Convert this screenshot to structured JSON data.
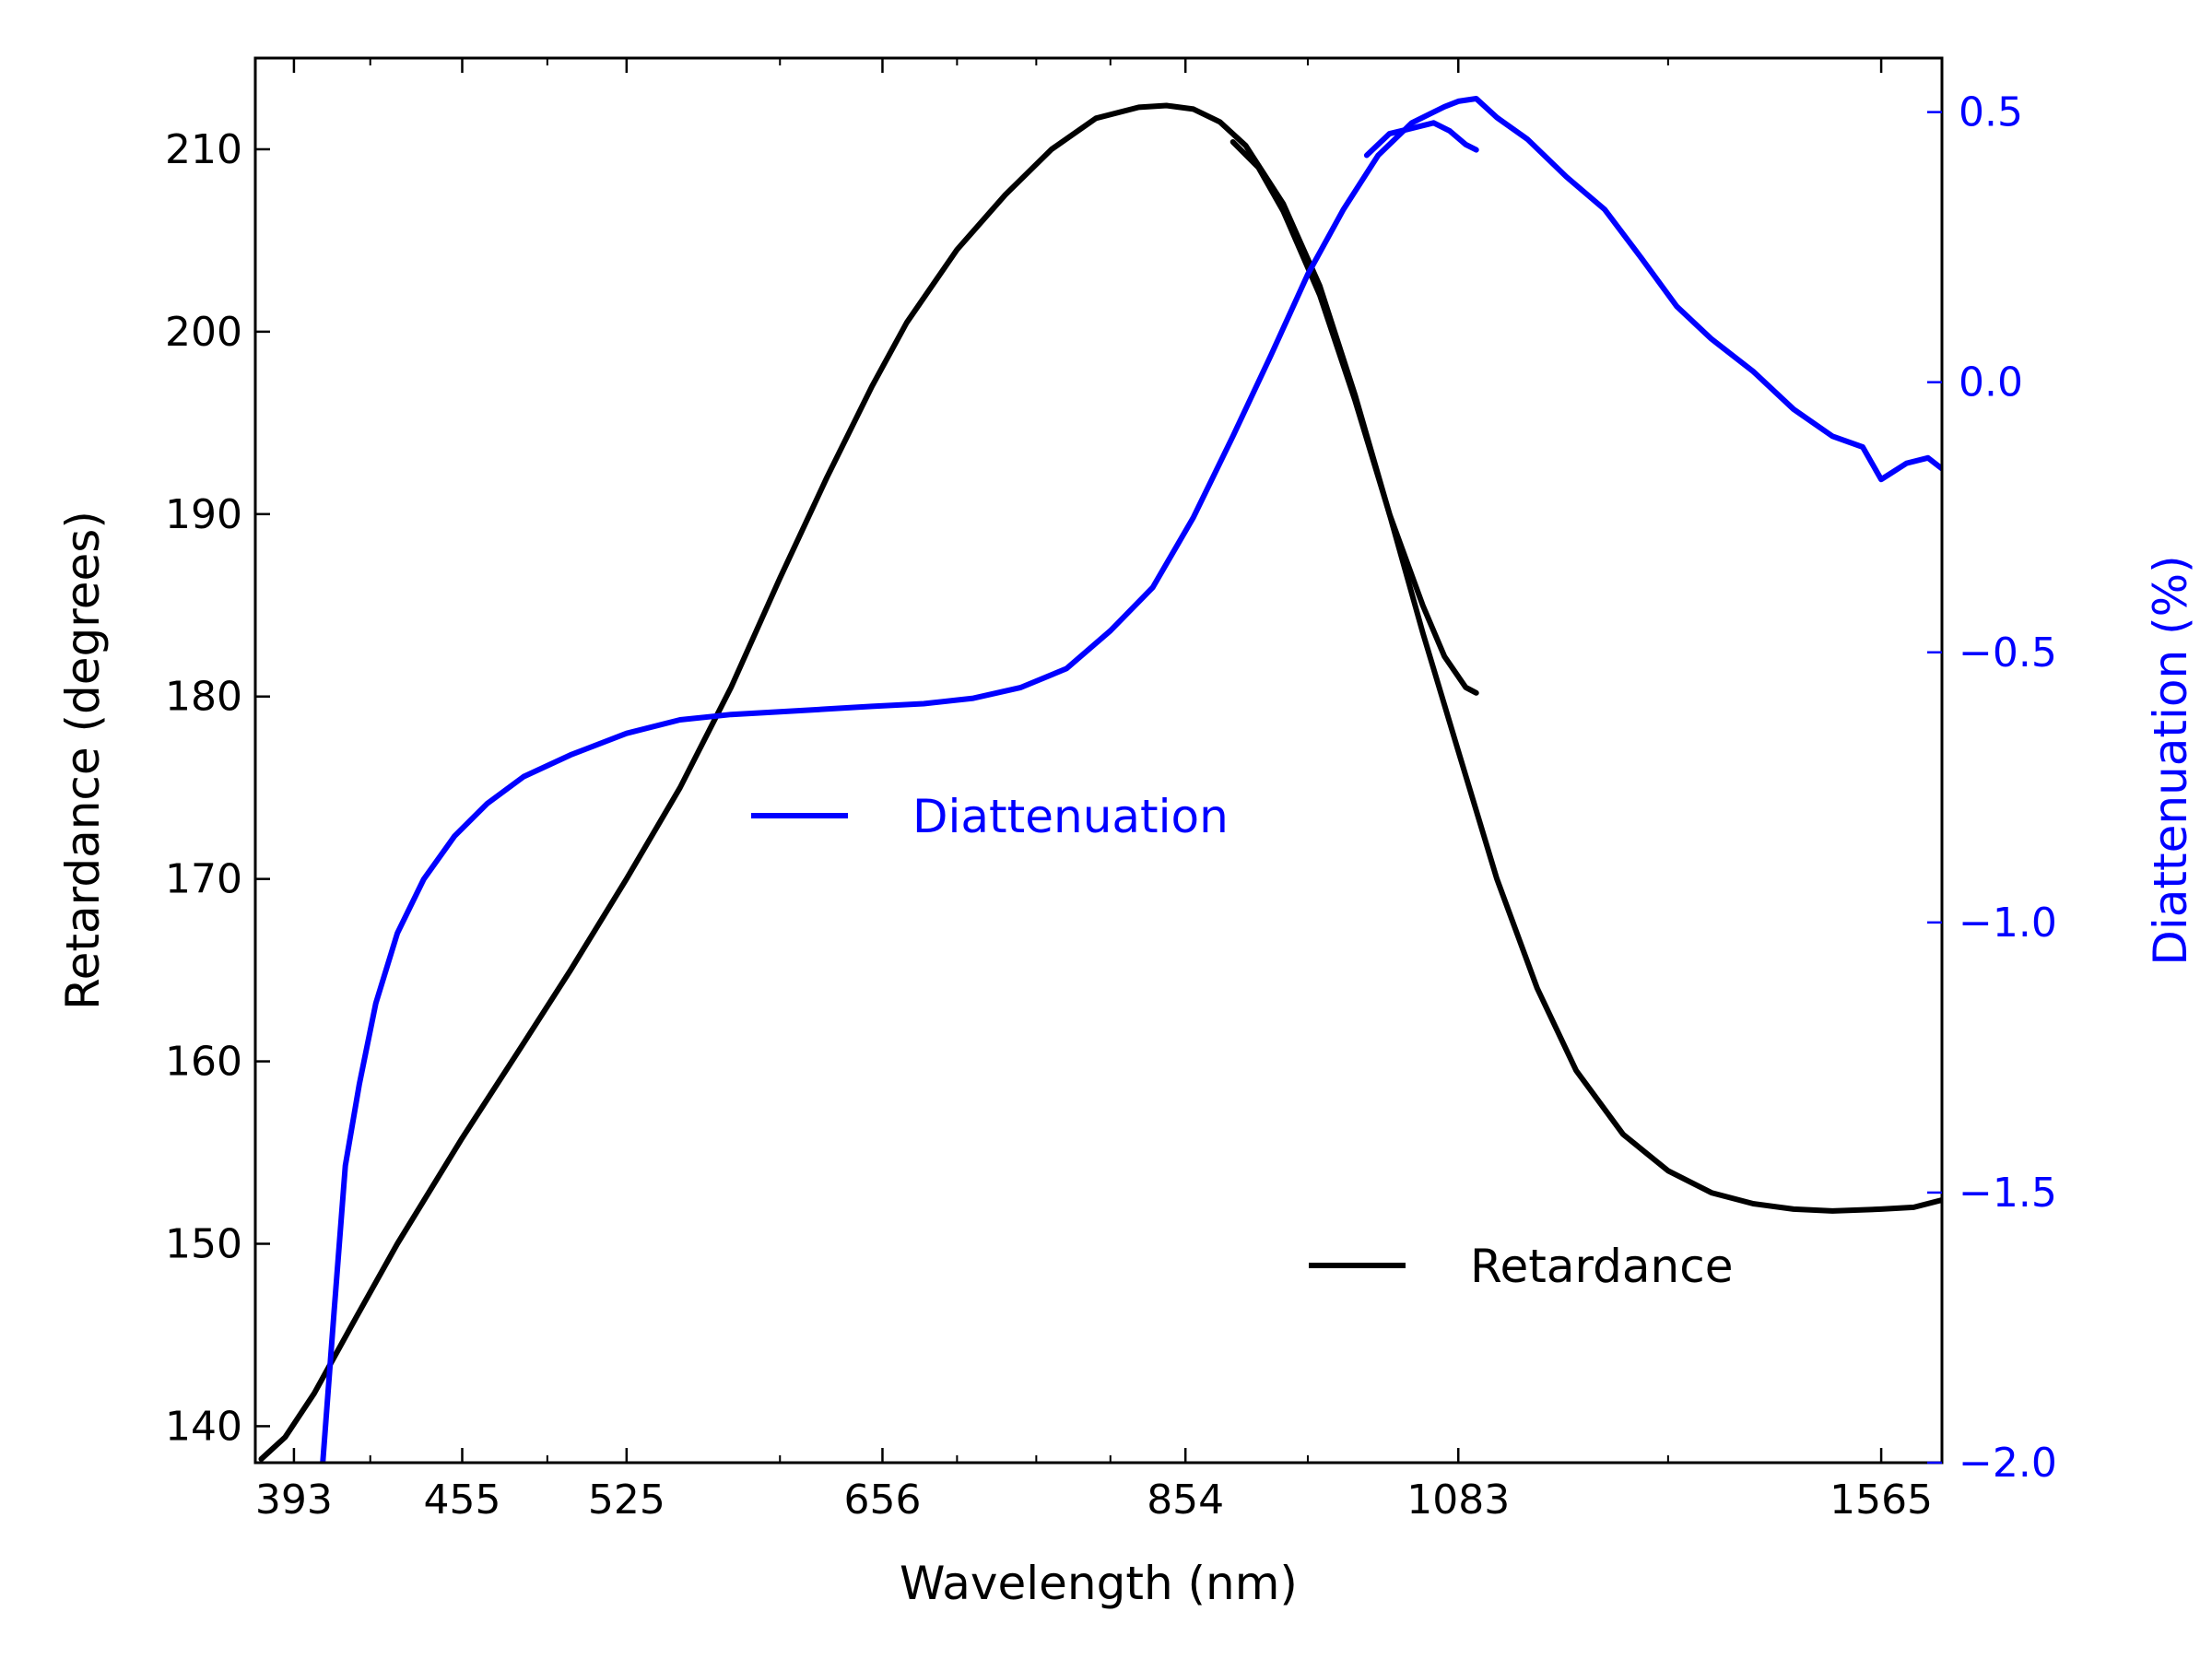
{
  "chart_data": {
    "type": "line",
    "x_axis": {
      "label": "Wavelength (nm)",
      "scale": "log",
      "range": [
        380,
        1650
      ],
      "major_ticks": [
        393,
        455,
        525,
        656,
        854,
        1083,
        1565
      ],
      "minor_ticks": [
        420,
        490,
        600,
        700,
        750,
        800,
        950,
        1300
      ]
    },
    "y_left": {
      "label": "Retardance (degrees)",
      "range": [
        138,
        215
      ],
      "ticks": [
        140,
        150,
        160,
        170,
        180,
        190,
        200,
        210
      ]
    },
    "y_right": {
      "label": "Diattenuation (%)",
      "range": [
        -2.0,
        0.6
      ],
      "ticks": [
        "0.5",
        "0.0",
        "−0.5",
        "−1.0",
        "−1.5",
        "−2.0"
      ],
      "tick_values": [
        0.5,
        0.0,
        -0.5,
        -1.0,
        -1.5,
        -2.0
      ]
    },
    "series": [
      {
        "name": "Retardance",
        "axis": "left",
        "color": "#000000",
        "points": [
          [
            382,
            138.2
          ],
          [
            390,
            139.4
          ],
          [
            400,
            141.8
          ],
          [
            415,
            146.0
          ],
          [
            430,
            150.0
          ],
          [
            455,
            155.8
          ],
          [
            480,
            161.0
          ],
          [
            500,
            165.0
          ],
          [
            525,
            170.0
          ],
          [
            550,
            175.0
          ],
          [
            575,
            180.5
          ],
          [
            600,
            186.5
          ],
          [
            625,
            192.0
          ],
          [
            650,
            197.0
          ],
          [
            670,
            200.5
          ],
          [
            700,
            204.5
          ],
          [
            730,
            207.5
          ],
          [
            760,
            210.0
          ],
          [
            790,
            211.7
          ],
          [
            820,
            212.3
          ],
          [
            840,
            212.4
          ],
          [
            860,
            212.2
          ],
          [
            880,
            211.5
          ],
          [
            900,
            210.2
          ],
          [
            930,
            207.0
          ],
          [
            960,
            202.5
          ],
          [
            990,
            196.5
          ],
          [
            1020,
            190.0
          ],
          [
            1050,
            183.5
          ],
          [
            1083,
            177.0
          ],
          [
            1120,
            170.0
          ],
          [
            1160,
            164.0
          ],
          [
            1200,
            159.5
          ],
          [
            1250,
            156.0
          ],
          [
            1300,
            154.0
          ],
          [
            1350,
            152.8
          ],
          [
            1400,
            152.2
          ],
          [
            1450,
            151.9
          ],
          [
            1500,
            151.8
          ],
          [
            1565,
            151.9
          ],
          [
            1610,
            152.0
          ],
          [
            1650,
            152.4
          ]
        ]
      },
      {
        "name": "Retardance",
        "axis": "left",
        "color": "#000000",
        "points": [
          [
            890,
            210.4
          ],
          [
            910,
            209.0
          ],
          [
            930,
            206.6
          ],
          [
            960,
            202.0
          ],
          [
            990,
            196.2
          ],
          [
            1020,
            190.0
          ],
          [
            1050,
            185.0
          ],
          [
            1070,
            182.2
          ],
          [
            1090,
            180.5
          ],
          [
            1100,
            180.2
          ]
        ]
      },
      {
        "name": "Diattenuation",
        "axis": "right",
        "color": "#0000ff",
        "points": [
          [
            403,
            -2.0
          ],
          [
            407,
            -1.72
          ],
          [
            411,
            -1.45
          ],
          [
            416,
            -1.3
          ],
          [
            422,
            -1.15
          ],
          [
            430,
            -1.02
          ],
          [
            440,
            -0.92
          ],
          [
            452,
            -0.84
          ],
          [
            465,
            -0.78
          ],
          [
            480,
            -0.73
          ],
          [
            500,
            -0.69
          ],
          [
            525,
            -0.65
          ],
          [
            550,
            -0.625
          ],
          [
            575,
            -0.615
          ],
          [
            600,
            -0.61
          ],
          [
            625,
            -0.605
          ],
          [
            650,
            -0.6
          ],
          [
            680,
            -0.595
          ],
          [
            710,
            -0.585
          ],
          [
            740,
            -0.565
          ],
          [
            770,
            -0.53
          ],
          [
            800,
            -0.46
          ],
          [
            830,
            -0.38
          ],
          [
            860,
            -0.25
          ],
          [
            890,
            -0.1
          ],
          [
            920,
            0.05
          ],
          [
            950,
            0.2
          ],
          [
            980,
            0.32
          ],
          [
            1010,
            0.42
          ],
          [
            1040,
            0.48
          ],
          [
            1070,
            0.51
          ],
          [
            1083,
            0.52
          ],
          [
            1100,
            0.525
          ],
          [
            1120,
            0.49
          ],
          [
            1150,
            0.45
          ],
          [
            1190,
            0.38
          ],
          [
            1230,
            0.32
          ],
          [
            1270,
            0.23
          ],
          [
            1310,
            0.14
          ],
          [
            1350,
            0.08
          ],
          [
            1400,
            0.02
          ],
          [
            1450,
            -0.05
          ],
          [
            1500,
            -0.1
          ],
          [
            1540,
            -0.12
          ],
          [
            1565,
            -0.18
          ],
          [
            1600,
            -0.15
          ],
          [
            1630,
            -0.14
          ],
          [
            1650,
            -0.16
          ]
        ]
      },
      {
        "name": "Diattenuation",
        "axis": "right",
        "color": "#0000ff",
        "points": [
          [
            1000,
            0.42
          ],
          [
            1020,
            0.46
          ],
          [
            1040,
            0.47
          ],
          [
            1060,
            0.48
          ],
          [
            1075,
            0.465
          ],
          [
            1090,
            0.44
          ],
          [
            1100,
            0.43
          ]
        ]
      }
    ],
    "legend": [
      {
        "label": "Diattenuation",
        "color": "#0000ff",
        "position": "center-left"
      },
      {
        "label": "Retardance",
        "color": "#000000",
        "position": "lower-right"
      }
    ]
  }
}
